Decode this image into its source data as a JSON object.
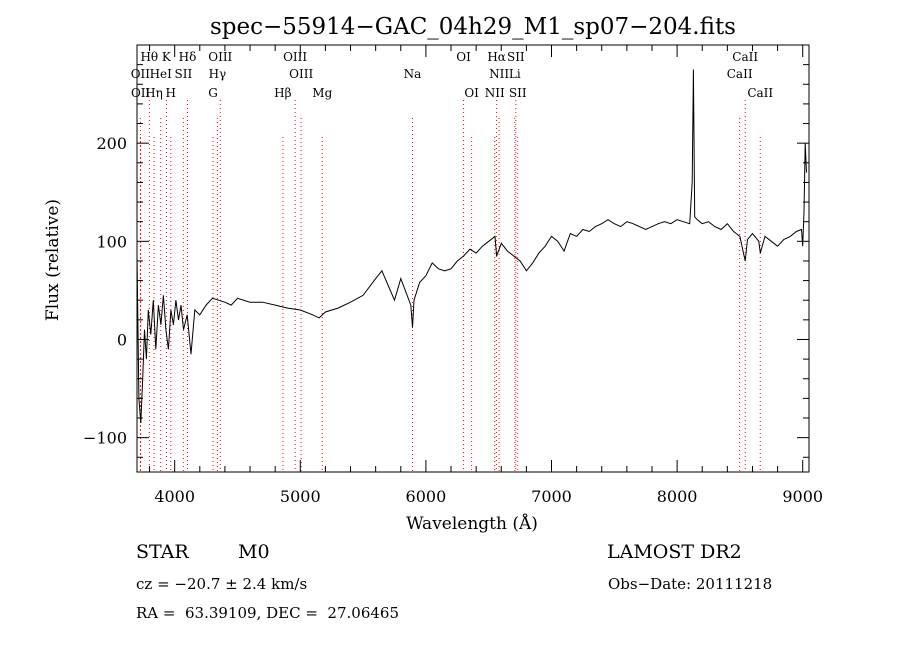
{
  "chart_data": {
    "type": "line",
    "title": "spec−55914−GAC_04h29_M1_sp07−204.fits",
    "xlabel": "Wavelength (Å)",
    "ylabel": "Flux (relative)",
    "xlim": [
      3700,
      9050
    ],
    "ylim": [
      -135,
      300
    ],
    "xticks": [
      4000,
      5000,
      6000,
      7000,
      8000,
      9000
    ],
    "yticks": [
      -100,
      0,
      100,
      200
    ],
    "xtick_labels": [
      "4000",
      "5000",
      "6000",
      "7000",
      "8000",
      "9000"
    ],
    "ytick_labels": [
      "−100",
      "0",
      "100",
      "200"
    ],
    "grid": false,
    "series": [
      {
        "x": [
          3700,
          3715,
          3730,
          3745,
          3760,
          3775,
          3790,
          3810,
          3830,
          3850,
          3870,
          3890,
          3910,
          3930,
          3950,
          3970,
          3990,
          4010,
          4030,
          4050,
          4070,
          4100,
          4130,
          4160,
          4200,
          4250,
          4300,
          4350,
          4400,
          4450,
          4500,
          4600,
          4700,
          4800,
          4900,
          5000,
          5100,
          5150,
          5200,
          5300,
          5400,
          5500,
          5600,
          5650,
          5700,
          5750,
          5800,
          5850,
          5880,
          5893,
          5905,
          5950,
          6000,
          6050,
          6100,
          6150,
          6200,
          6250,
          6300,
          6350,
          6400,
          6450,
          6500,
          6550,
          6563,
          6600,
          6650,
          6700,
          6750,
          6800,
          6850,
          6900,
          6950,
          7000,
          7050,
          7100,
          7150,
          7200,
          7250,
          7300,
          7350,
          7400,
          7450,
          7500,
          7550,
          7600,
          7650,
          7700,
          7750,
          7800,
          7850,
          7900,
          7950,
          8000,
          8050,
          8100,
          8120,
          8130,
          8140,
          8160,
          8200,
          8250,
          8300,
          8350,
          8400,
          8450,
          8500,
          8542,
          8560,
          8600,
          8650,
          8662,
          8700,
          8750,
          8800,
          8850,
          8900,
          8950,
          8990,
          9000,
          9010,
          9020,
          9030
        ],
        "y": [
          85,
          -60,
          -85,
          -40,
          10,
          -20,
          30,
          5,
          40,
          -10,
          35,
          15,
          45,
          10,
          -10,
          30,
          15,
          40,
          20,
          35,
          10,
          25,
          -15,
          30,
          25,
          35,
          42,
          40,
          38,
          35,
          42,
          38,
          38,
          35,
          32,
          30,
          25,
          22,
          28,
          32,
          38,
          45,
          62,
          70,
          55,
          40,
          62,
          45,
          35,
          12,
          40,
          58,
          65,
          78,
          72,
          70,
          72,
          80,
          85,
          92,
          88,
          95,
          100,
          105,
          85,
          98,
          90,
          85,
          80,
          70,
          78,
          88,
          95,
          105,
          100,
          90,
          108,
          105,
          112,
          110,
          115,
          118,
          122,
          118,
          115,
          120,
          118,
          115,
          112,
          115,
          118,
          120,
          118,
          122,
          120,
          118,
          160,
          275,
          125,
          122,
          118,
          120,
          115,
          112,
          118,
          110,
          105,
          80,
          102,
          108,
          100,
          88,
          105,
          100,
          95,
          102,
          105,
          110,
          112,
          95,
          130,
          200,
          170
        ],
        "color": "#000000"
      }
    ],
    "line_annotations": {
      "color": "#ff0000",
      "lines": [
        {
          "label": "Hθ",
          "x": 3798
        },
        {
          "label": "K",
          "x": 3934
        },
        {
          "label": "Hδ",
          "x": 4102
        },
        {
          "label": "OIII",
          "x": 4363
        },
        {
          "label": "OIII",
          "x": 4959
        },
        {
          "label": "OI",
          "x": 6300
        },
        {
          "label": "Hα",
          "x": 6563
        },
        {
          "label": "SII",
          "x": 6716
        },
        {
          "label": "CaII",
          "x": 8542
        },
        {
          "label": "OII",
          "x": 3727
        },
        {
          "label": "HeI",
          "x": 3889
        },
        {
          "label": "SII",
          "x": 4069
        },
        {
          "label": "Hγ",
          "x": 4340
        },
        {
          "label": "OIII",
          "x": 5007
        },
        {
          "label": "Na",
          "x": 5893
        },
        {
          "label": "NII",
          "x": 6583
        },
        {
          "label": "Li",
          "x": 6708
        },
        {
          "label": "CaII",
          "x": 8498
        },
        {
          "label": "OII",
          "x": 3729
        },
        {
          "label": "Hη",
          "x": 3835
        },
        {
          "label": "H",
          "x": 3969
        },
        {
          "label": "G",
          "x": 4305
        },
        {
          "label": "Hβ",
          "x": 4861
        },
        {
          "label": "Mg",
          "x": 5175
        },
        {
          "label": "OI",
          "x": 6364
        },
        {
          "label": "NII",
          "x": 6548
        },
        {
          "label": "SII",
          "x": 6731
        },
        {
          "label": "CaII",
          "x": 8662
        }
      ]
    }
  },
  "info": {
    "object_class": "STAR",
    "subclass": "M0",
    "survey": "LAMOST DR2",
    "redshift": "cz = −20.7 ± 2.4 km/s",
    "obs_date": "Obs−Date: 20111218",
    "coords": "RA =  63.39109, DEC =  27.06465"
  }
}
